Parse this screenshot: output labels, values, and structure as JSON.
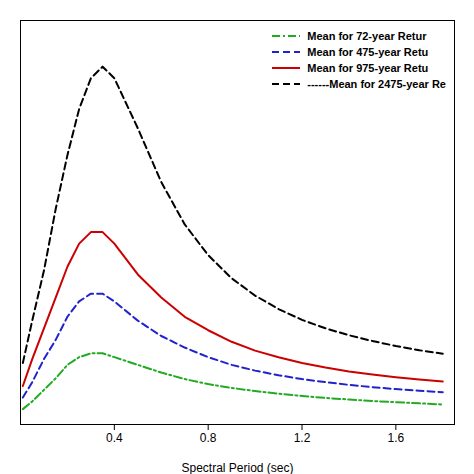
{
  "chart_data": {
    "type": "line",
    "xlabel": "Spectral Period (sec)",
    "x": [
      0.01,
      0.05,
      0.1,
      0.15,
      0.2,
      0.25,
      0.3,
      0.35,
      0.4,
      0.5,
      0.6,
      0.7,
      0.8,
      0.9,
      1.0,
      1.1,
      1.2,
      1.3,
      1.4,
      1.5,
      1.6,
      1.7,
      1.8
    ],
    "series": [
      {
        "name": "Mean for 72-year Retur",
        "color": "#22aa22",
        "line_style": "dashdot",
        "values": [
          0.04,
          0.06,
          0.09,
          0.12,
          0.155,
          0.175,
          0.185,
          0.185,
          0.175,
          0.155,
          0.135,
          0.118,
          0.105,
          0.095,
          0.087,
          0.08,
          0.074,
          0.069,
          0.065,
          0.061,
          0.058,
          0.055,
          0.052
        ]
      },
      {
        "name": "Mean for 475-year Retu",
        "color": "#2222cc",
        "line_style": "dashed",
        "values": [
          0.07,
          0.11,
          0.17,
          0.22,
          0.28,
          0.32,
          0.34,
          0.34,
          0.32,
          0.27,
          0.23,
          0.2,
          0.175,
          0.155,
          0.14,
          0.128,
          0.118,
          0.11,
          0.103,
          0.097,
          0.092,
          0.088,
          0.084
        ]
      },
      {
        "name": "Mean for 975-year Retu",
        "color": "#cc0000",
        "line_style": "solid",
        "values": [
          0.1,
          0.17,
          0.25,
          0.33,
          0.41,
          0.47,
          0.5,
          0.5,
          0.47,
          0.39,
          0.33,
          0.28,
          0.245,
          0.215,
          0.192,
          0.175,
          0.16,
          0.148,
          0.138,
          0.13,
          0.123,
          0.117,
          0.112
        ]
      },
      {
        "name": "------Mean for 2475-year Re",
        "color": "#000000",
        "line_style": "dashed",
        "values": [
          0.16,
          0.27,
          0.4,
          0.56,
          0.7,
          0.82,
          0.9,
          0.93,
          0.9,
          0.77,
          0.63,
          0.52,
          0.44,
          0.38,
          0.335,
          0.3,
          0.272,
          0.25,
          0.232,
          0.217,
          0.204,
          0.193,
          0.184
        ]
      }
    ],
    "xlim": [
      0.0,
      1.85
    ],
    "ylim": [
      0.0,
      1.05
    ],
    "xticks": [
      0.4,
      0.8,
      1.2,
      1.6
    ],
    "yticks": [],
    "tick_labels": "x",
    "grid": false,
    "legend": "upper right"
  }
}
